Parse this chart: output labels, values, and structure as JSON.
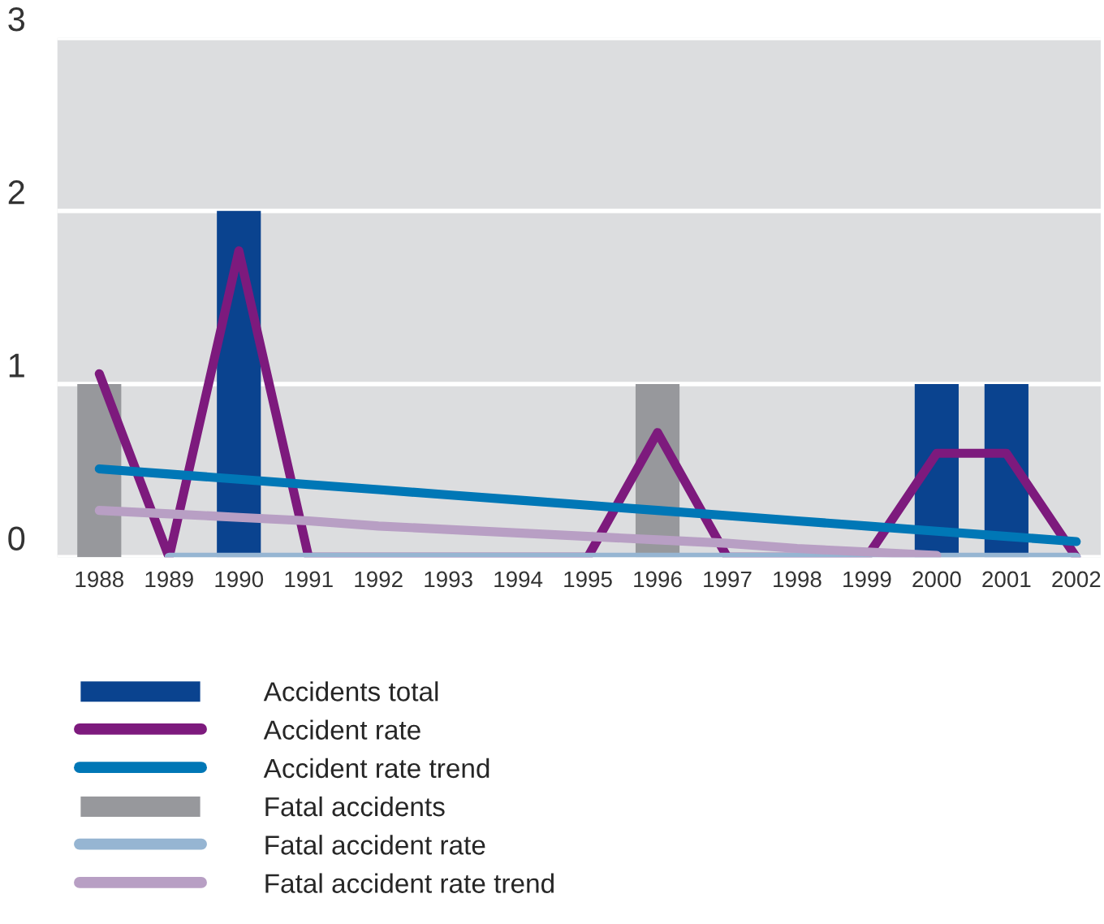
{
  "chart_data": {
    "type": "bar",
    "categories": [
      "1988",
      "1989",
      "1990",
      "1991",
      "1992",
      "1993",
      "1994",
      "1995",
      "1996",
      "1997",
      "1998",
      "1999",
      "2000",
      "2001",
      "2002"
    ],
    "series": [
      {
        "name": "Accidents total",
        "color": "#0a438f",
        "values": [
          null,
          0,
          2,
          0,
          0,
          0,
          0,
          0,
          null,
          0,
          0,
          0,
          1,
          1,
          0
        ]
      },
      {
        "name": "Accident rate",
        "type": "line",
        "color": "#7d1a7d",
        "values": [
          1.06,
          0,
          1.77,
          0,
          0,
          0,
          0,
          0,
          0.72,
          0,
          0,
          0,
          0.6,
          0.6,
          0
        ]
      },
      {
        "name": "Accident rate trend",
        "type": "line",
        "color": "#0077b6",
        "values": [
          0.51,
          0.48,
          0.45,
          0.42,
          0.39,
          0.36,
          0.33,
          0.3,
          0.27,
          0.24,
          0.21,
          0.18,
          0.15,
          0.12,
          0.09
        ]
      },
      {
        "name": "Fatal accidents",
        "color": "#97989c",
        "values": [
          1,
          0,
          0,
          0,
          0,
          0,
          0,
          0,
          1,
          0,
          0,
          0,
          0,
          0,
          0
        ]
      },
      {
        "name": "Fatal accident rate",
        "type": "line",
        "color": "#96b5d2",
        "values": [
          null,
          0,
          0,
          0,
          0,
          0,
          0,
          0,
          0,
          0,
          0,
          0,
          0,
          0,
          0
        ]
      },
      {
        "name": "Fatal accident rate trend",
        "type": "line",
        "color": "#b89fc4",
        "values": [
          0.27,
          0.25,
          0.23,
          0.21,
          0.18,
          0.16,
          0.14,
          0.12,
          0.1,
          0.08,
          0.05,
          0.03,
          0.01,
          null,
          null
        ]
      }
    ],
    "ylim": [
      0,
      3
    ],
    "yticks": [
      0,
      1,
      2,
      3
    ],
    "grid": "y",
    "legend": "bottom",
    "marker": "none",
    "line_style": "solid"
  }
}
